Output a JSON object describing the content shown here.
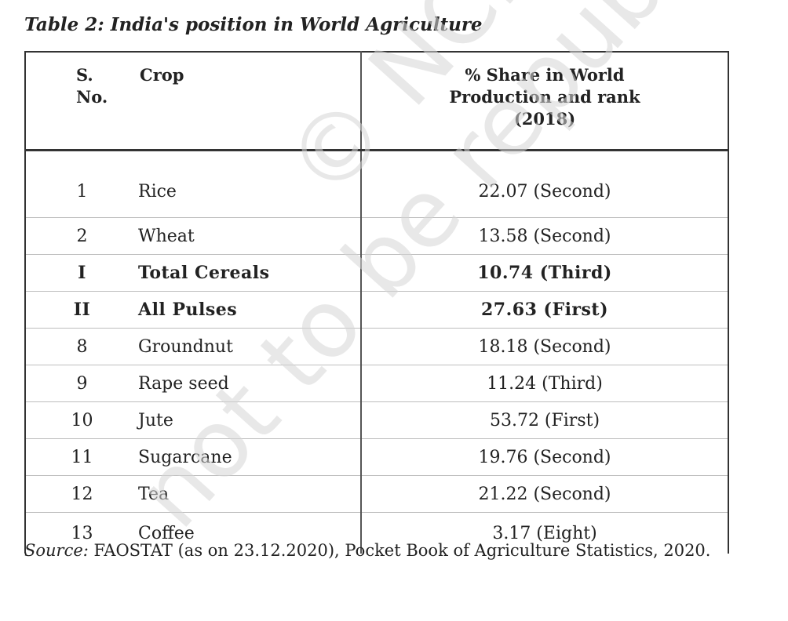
{
  "caption": "Table 2: India's position in World Agriculture",
  "table": {
    "headers": {
      "sno": [
        "S.",
        "No."
      ],
      "crop": "Crop",
      "share": [
        "% Share in World",
        "Production and rank",
        "(2018)"
      ]
    },
    "rows": [
      {
        "sno": "1",
        "crop": "Rice",
        "share": "22.07 (Second)",
        "bold": false
      },
      {
        "sno": "2",
        "crop": "Wheat",
        "share": "13.58 (Second)",
        "bold": false
      },
      {
        "sno": "I",
        "crop": "Total Cereals",
        "share": "10.74 (Third)",
        "bold": true
      },
      {
        "sno": "II",
        "crop": "All Pulses",
        "share": "27.63 (First)",
        "bold": true
      },
      {
        "sno": "8",
        "crop": "Groundnut",
        "share": "18.18 (Second)",
        "bold": false
      },
      {
        "sno": "9",
        "crop": "Rape seed",
        "share": "11.24 (Third)",
        "bold": false
      },
      {
        "sno": "10",
        "crop": "Jute",
        "share": "53.72 (First)",
        "bold": false
      },
      {
        "sno": "11",
        "crop": "Sugarcane",
        "share": "19.76 (Second)",
        "bold": false
      },
      {
        "sno": "12",
        "crop": "Tea",
        "share": "21.22 (Second)",
        "bold": false
      },
      {
        "sno": "13",
        "crop": "Coffee",
        "share": "3.17 (Eight)",
        "bold": false
      }
    ]
  },
  "source": {
    "label": "Source:",
    "text": " FAOSTAT (as on 23.12.2020), Pocket Book of Agriculture Statistics, 2020."
  },
  "watermark": {
    "line1": "© NCERT",
    "line2": "not to be republished"
  }
}
